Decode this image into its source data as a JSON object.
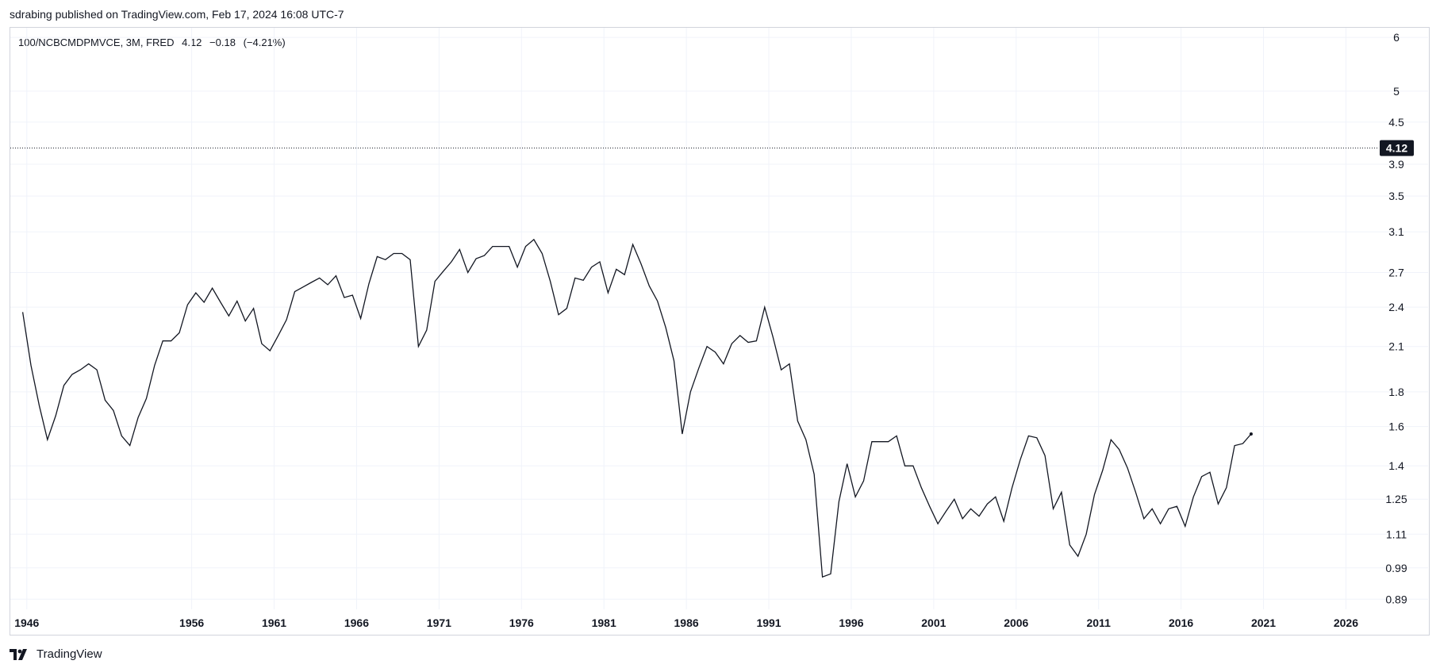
{
  "publisher": {
    "text": "sdrabing published on TradingView.com, Feb 17, 2024 16:08 UTC-7"
  },
  "legend": {
    "symbol": "100/NCBCMDPMVCE, 3M, FRED",
    "last": "4.12",
    "change": "−0.18",
    "change_pct": "(−4.21%)"
  },
  "footer": {
    "brand": "TradingView",
    "logo_icon": "tradingview-logo-icon"
  },
  "colors": {
    "line": "#131722",
    "grid": "#f0f3fa",
    "badge_bg": "#131722",
    "badge_text": "#ffffff"
  },
  "chart_data": {
    "type": "line",
    "scale": "log",
    "xlabel": "",
    "ylabel": "",
    "grid": true,
    "x_ticks": [
      "1946",
      "1956",
      "1961",
      "1966",
      "1971",
      "1976",
      "1981",
      "1986",
      "1991",
      "1996",
      "2001",
      "2006",
      "2011",
      "2016",
      "2021",
      "2026"
    ],
    "y_ticks": [
      "6",
      "5",
      "4.5",
      "3.9",
      "3.5",
      "3.1",
      "2.7",
      "2.4",
      "2.1",
      "1.8",
      "1.6",
      "1.4",
      "1.25",
      "1.11",
      "0.99",
      "0.89"
    ],
    "xlim": [
      1945.0,
      2028.0
    ],
    "ylim": [
      0.86,
      6.2
    ],
    "last_price_label": "4.12",
    "last_price": 4.12,
    "series": [
      {
        "values": [
          [
            1945.75,
            2.36
          ],
          [
            1946.25,
            1.97
          ],
          [
            1946.75,
            1.72
          ],
          [
            1947.25,
            1.53
          ],
          [
            1947.75,
            1.66
          ],
          [
            1948.25,
            1.84
          ],
          [
            1948.75,
            1.91
          ],
          [
            1949.25,
            1.94
          ],
          [
            1949.75,
            1.98
          ],
          [
            1950.25,
            1.94
          ],
          [
            1950.75,
            1.75
          ],
          [
            1951.25,
            1.69
          ],
          [
            1951.75,
            1.55
          ],
          [
            1952.25,
            1.5
          ],
          [
            1952.75,
            1.65
          ],
          [
            1953.25,
            1.76
          ],
          [
            1953.75,
            1.97
          ],
          [
            1954.25,
            2.14
          ],
          [
            1954.75,
            2.14
          ],
          [
            1955.25,
            2.2
          ],
          [
            1955.75,
            2.42
          ],
          [
            1956.25,
            2.52
          ],
          [
            1956.75,
            2.44
          ],
          [
            1957.25,
            2.56
          ],
          [
            1957.75,
            2.44
          ],
          [
            1958.25,
            2.33
          ],
          [
            1958.75,
            2.45
          ],
          [
            1959.25,
            2.29
          ],
          [
            1959.75,
            2.39
          ],
          [
            1960.25,
            2.12
          ],
          [
            1960.75,
            2.07
          ],
          [
            1961.25,
            2.18
          ],
          [
            1961.75,
            2.3
          ],
          [
            1962.25,
            2.53
          ],
          [
            1962.75,
            2.57
          ],
          [
            1963.25,
            2.61
          ],
          [
            1963.75,
            2.65
          ],
          [
            1964.25,
            2.59
          ],
          [
            1964.75,
            2.67
          ],
          [
            1965.25,
            2.48
          ],
          [
            1965.75,
            2.5
          ],
          [
            1966.25,
            2.31
          ],
          [
            1966.75,
            2.6
          ],
          [
            1967.25,
            2.85
          ],
          [
            1967.75,
            2.82
          ],
          [
            1968.25,
            2.88
          ],
          [
            1968.75,
            2.88
          ],
          [
            1969.25,
            2.82
          ],
          [
            1969.75,
            2.1
          ],
          [
            1970.25,
            2.22
          ],
          [
            1970.75,
            2.62
          ],
          [
            1971.25,
            2.71
          ],
          [
            1971.75,
            2.8
          ],
          [
            1972.25,
            2.92
          ],
          [
            1972.75,
            2.7
          ],
          [
            1973.25,
            2.83
          ],
          [
            1973.75,
            2.86
          ],
          [
            1974.25,
            2.95
          ],
          [
            1974.75,
            2.95
          ],
          [
            1975.25,
            2.95
          ],
          [
            1975.75,
            2.75
          ],
          [
            1976.25,
            2.95
          ],
          [
            1976.75,
            3.02
          ],
          [
            1977.25,
            2.88
          ],
          [
            1977.75,
            2.62
          ],
          [
            1978.25,
            2.34
          ],
          [
            1978.75,
            2.39
          ],
          [
            1979.25,
            2.65
          ],
          [
            1979.75,
            2.63
          ],
          [
            1980.25,
            2.75
          ],
          [
            1980.75,
            2.8
          ],
          [
            1981.25,
            2.52
          ],
          [
            1981.75,
            2.73
          ],
          [
            1982.25,
            2.68
          ],
          [
            1982.75,
            2.97
          ],
          [
            1983.25,
            2.78
          ],
          [
            1983.75,
            2.58
          ],
          [
            1984.25,
            2.45
          ],
          [
            1984.75,
            2.24
          ],
          [
            1985.25,
            2.0
          ],
          [
            1985.75,
            1.56
          ],
          [
            1986.25,
            1.8
          ],
          [
            1986.75,
            1.95
          ],
          [
            1987.25,
            2.1
          ],
          [
            1987.75,
            2.06
          ],
          [
            1988.25,
            1.98
          ],
          [
            1988.75,
            2.12
          ],
          [
            1989.25,
            2.18
          ],
          [
            1989.75,
            2.13
          ],
          [
            1990.25,
            2.14
          ],
          [
            1990.75,
            2.4
          ],
          [
            1991.25,
            2.17
          ],
          [
            1991.75,
            1.94
          ],
          [
            1992.25,
            1.98
          ],
          [
            1992.75,
            1.63
          ],
          [
            1993.25,
            1.53
          ],
          [
            1993.75,
            1.36
          ],
          [
            1994.25,
            0.96
          ],
          [
            1994.75,
            0.97
          ],
          [
            1995.25,
            1.24
          ],
          [
            1995.75,
            1.41
          ],
          [
            1996.25,
            1.26
          ],
          [
            1996.75,
            1.33
          ],
          [
            1997.25,
            1.52
          ],
          [
            1997.75,
            1.52
          ],
          [
            1998.25,
            1.52
          ],
          [
            1998.75,
            1.55
          ],
          [
            1999.25,
            1.4
          ],
          [
            1999.75,
            1.4
          ],
          [
            2000.25,
            1.3
          ],
          [
            2000.75,
            1.22
          ],
          [
            2001.25,
            1.15
          ],
          [
            2001.75,
            1.2
          ],
          [
            2002.25,
            1.25
          ],
          [
            2002.75,
            1.17
          ],
          [
            2003.25,
            1.21
          ],
          [
            2003.75,
            1.18
          ],
          [
            2004.25,
            1.23
          ],
          [
            2004.75,
            1.26
          ],
          [
            2005.25,
            1.16
          ],
          [
            2005.75,
            1.3
          ],
          [
            2006.25,
            1.43
          ],
          [
            2006.75,
            1.55
          ],
          [
            2007.25,
            1.54
          ],
          [
            2007.75,
            1.45
          ],
          [
            2008.25,
            1.21
          ],
          [
            2008.75,
            1.28
          ],
          [
            2009.25,
            1.07
          ],
          [
            2009.75,
            1.03
          ],
          [
            2010.25,
            1.11
          ],
          [
            2010.75,
            1.27
          ],
          [
            2011.25,
            1.38
          ],
          [
            2011.75,
            1.53
          ],
          [
            2012.25,
            1.48
          ],
          [
            2012.75,
            1.39
          ],
          [
            2013.25,
            1.28
          ],
          [
            2013.75,
            1.17
          ],
          [
            2014.25,
            1.21
          ],
          [
            2014.75,
            1.15
          ],
          [
            2015.25,
            1.21
          ],
          [
            2015.75,
            1.22
          ],
          [
            2016.25,
            1.14
          ],
          [
            2016.75,
            1.26
          ],
          [
            2017.25,
            1.35
          ],
          [
            2017.75,
            1.37
          ],
          [
            2018.25,
            1.23
          ],
          [
            2018.75,
            1.3
          ],
          [
            2019.25,
            1.5
          ],
          [
            2019.75,
            1.51
          ],
          [
            2020.25,
            1.56
          ]
        ]
      }
    ]
  }
}
